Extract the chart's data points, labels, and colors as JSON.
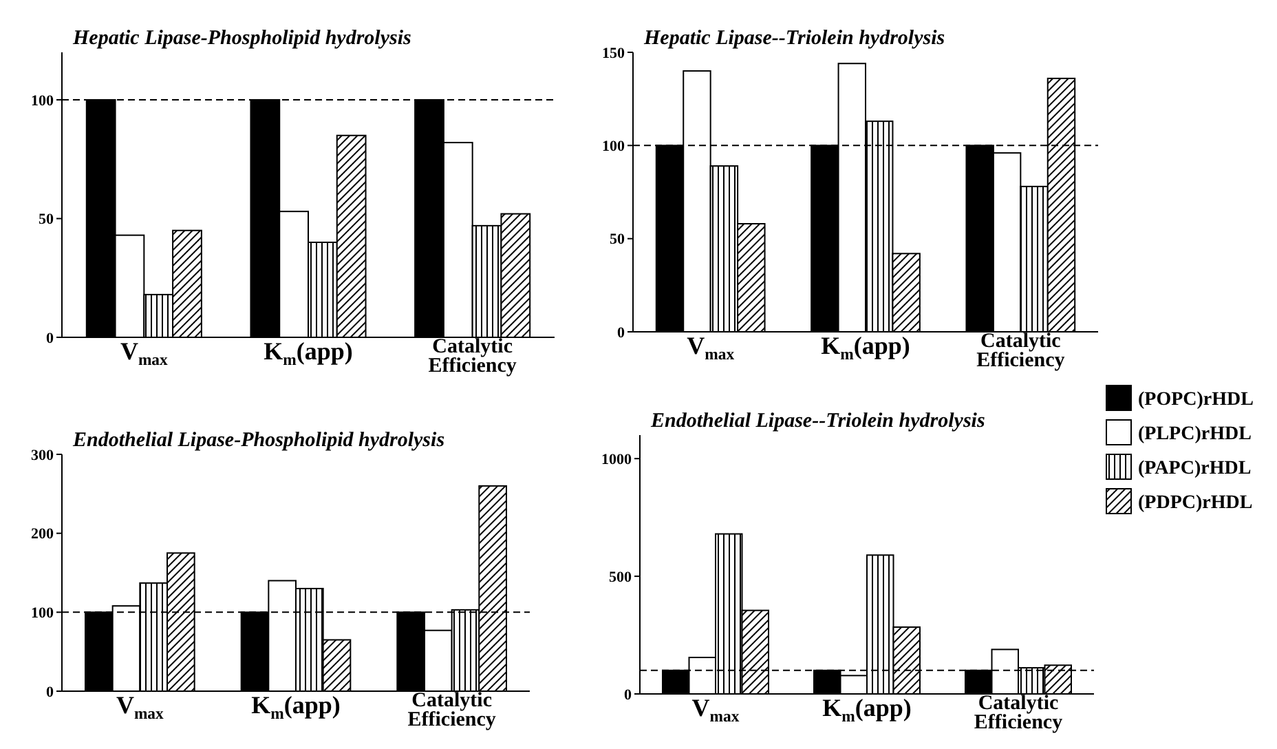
{
  "chart_data": [
    {
      "type": "bar",
      "title": "Hepatic Lipase-Phospholipid hydrolysis",
      "categories": [
        "V$_{max}$",
        "K$_{m}$(app)",
        "Catalytic Efficiency"
      ],
      "ylim": [
        0,
        120
      ],
      "yticks": [
        0,
        50,
        100
      ],
      "grid": false,
      "legend": false,
      "series": [
        {
          "color": "#000000",
          "values": [
            100,
            100,
            100
          ]
        },
        {
          "color": "#ffffff",
          "values": [
            43,
            53,
            82
          ]
        },
        {
          "color": "#000000",
          "values": [
            18,
            40,
            47
          ]
        },
        {
          "color": "#000000",
          "values": [
            45,
            85,
            52
          ]
        }
      ],
      "ref_lines": [
        {
          "axis": "y",
          "value": 100,
          "line_style": "dashed"
        }
      ]
    },
    {
      "type": "bar",
      "title": "Hepatic Lipase--Triolein hydrolysis",
      "categories": [
        "V$_{max}$",
        "K$_{m}$(app)",
        "Catalytic Efficiency"
      ],
      "ylim": [
        0,
        150
      ],
      "yticks": [
        0,
        50,
        100,
        150
      ],
      "grid": false,
      "legend": false,
      "series": [
        {
          "color": "#000000",
          "values": [
            100,
            100,
            100
          ]
        },
        {
          "color": "#ffffff",
          "values": [
            140,
            144,
            96
          ]
        },
        {
          "color": "#000000",
          "values": [
            89,
            113,
            78
          ]
        },
        {
          "color": "#000000",
          "values": [
            58,
            42,
            136
          ]
        }
      ],
      "ref_lines": [
        {
          "axis": "y",
          "value": 100,
          "line_style": "dashed"
        }
      ]
    },
    {
      "type": "bar",
      "title": "Endothelial Lipase-Phospholipid hydrolysis",
      "categories": [
        "V$_{max}$",
        "K$_{m}$(app)",
        "Catalytic Efficiency"
      ],
      "ylim": [
        0,
        300
      ],
      "yticks": [
        0,
        100,
        200,
        300
      ],
      "grid": false,
      "legend": false,
      "series": [
        {
          "color": "#000000",
          "values": [
            100,
            100,
            100
          ]
        },
        {
          "color": "#ffffff",
          "values": [
            108,
            140,
            77
          ]
        },
        {
          "color": "#000000",
          "values": [
            137,
            130,
            103
          ]
        },
        {
          "color": "#000000",
          "values": [
            175,
            65,
            260
          ]
        }
      ],
      "ref_lines": [
        {
          "axis": "y",
          "value": 100,
          "line_style": "dashed"
        }
      ]
    },
    {
      "type": "bar",
      "title": "Endothelial Lipase--Triolein hydrolysis",
      "categories": [
        "V$_{max}$",
        "K$_{m}$(app)",
        "Catalytic Efficiency"
      ],
      "ylim": [
        0,
        1100
      ],
      "yticks": [
        0,
        500,
        1000
      ],
      "grid": false,
      "legend": "top right",
      "series": [
        {
          "name": "(POPC)rHDL",
          "color": "#000000",
          "values": [
            100,
            100,
            100
          ]
        },
        {
          "name": "(PLPC)rHDL",
          "color": "#ffffff",
          "values": [
            155,
            78,
            189
          ]
        },
        {
          "name": "(PAPC)rHDL",
          "color": "#000000",
          "values": [
            680,
            590,
            111
          ]
        },
        {
          "name": "(PDPC)rHDL",
          "color": "#000000",
          "values": [
            355,
            284,
            122
          ]
        }
      ],
      "ref_lines": [
        {
          "axis": "y",
          "value": 100,
          "line_style": "dashed"
        }
      ]
    }
  ]
}
